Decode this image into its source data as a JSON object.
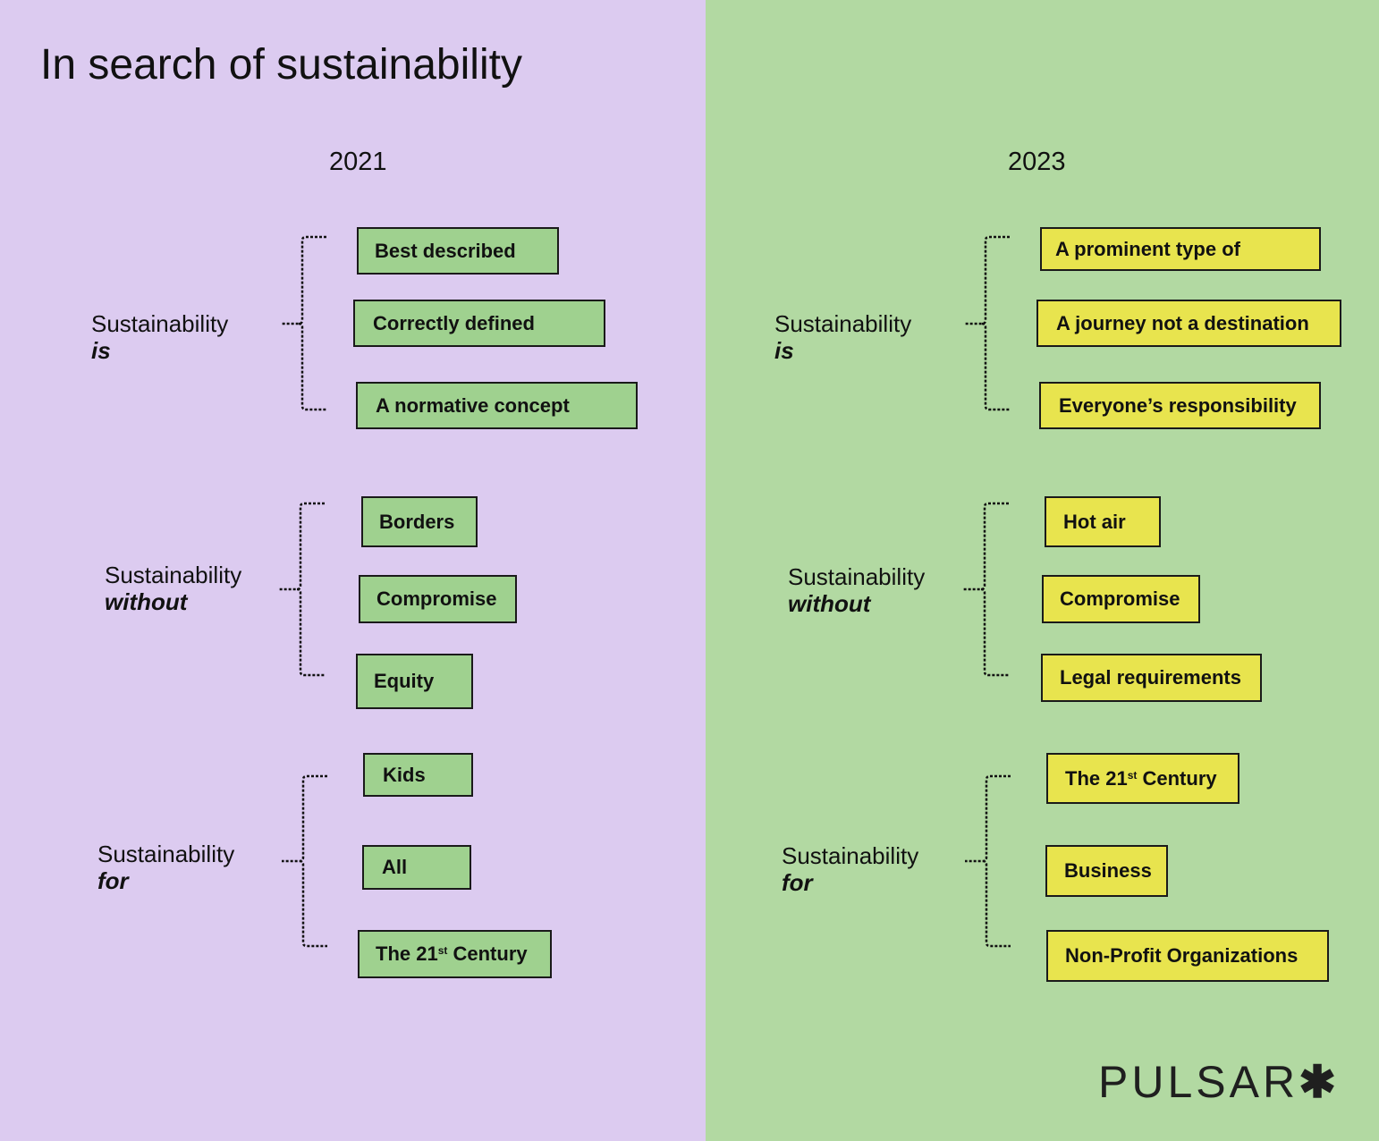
{
  "title": "In search of sustainability",
  "colors": {
    "left_bg": "#dccbf0",
    "right_bg": "#b2d9a2",
    "box_2021": "#9fd18f",
    "box_2023": "#e8e44e"
  },
  "columns": [
    {
      "year": "2021",
      "groups": [
        {
          "label": "Sustainability",
          "keyword": "is",
          "items": [
            {
              "text": "Best described"
            },
            {
              "text": "Correctly defined"
            },
            {
              "text": "A normative concept"
            }
          ]
        },
        {
          "label": "Sustainability",
          "keyword": "without",
          "items": [
            {
              "text": "Borders"
            },
            {
              "text": "Compromise"
            },
            {
              "text": "Equity"
            }
          ]
        },
        {
          "label": "Sustainability",
          "keyword": "for",
          "items": [
            {
              "text": "Kids"
            },
            {
              "text": "All"
            },
            {
              "text": "The 21",
              "sup": "st",
              "rest": " Century"
            }
          ]
        }
      ]
    },
    {
      "year": "2023",
      "groups": [
        {
          "label": "Sustainability",
          "keyword": "is",
          "items": [
            {
              "text": "A prominent type of"
            },
            {
              "text": "A journey not a destination"
            },
            {
              "text": "Everyone’s responsibility"
            }
          ]
        },
        {
          "label": "Sustainability",
          "keyword": "without",
          "items": [
            {
              "text": "Hot air"
            },
            {
              "text": "Compromise"
            },
            {
              "text": "Legal requirements"
            }
          ]
        },
        {
          "label": "Sustainability",
          "keyword": "for",
          "items": [
            {
              "text": "The 21",
              "sup": "st",
              "rest": " Century"
            },
            {
              "text": "Business"
            },
            {
              "text": "Non-Profit Organizations"
            }
          ]
        }
      ]
    }
  ],
  "logo": {
    "text": "PULSAR",
    "mark": "✱"
  }
}
